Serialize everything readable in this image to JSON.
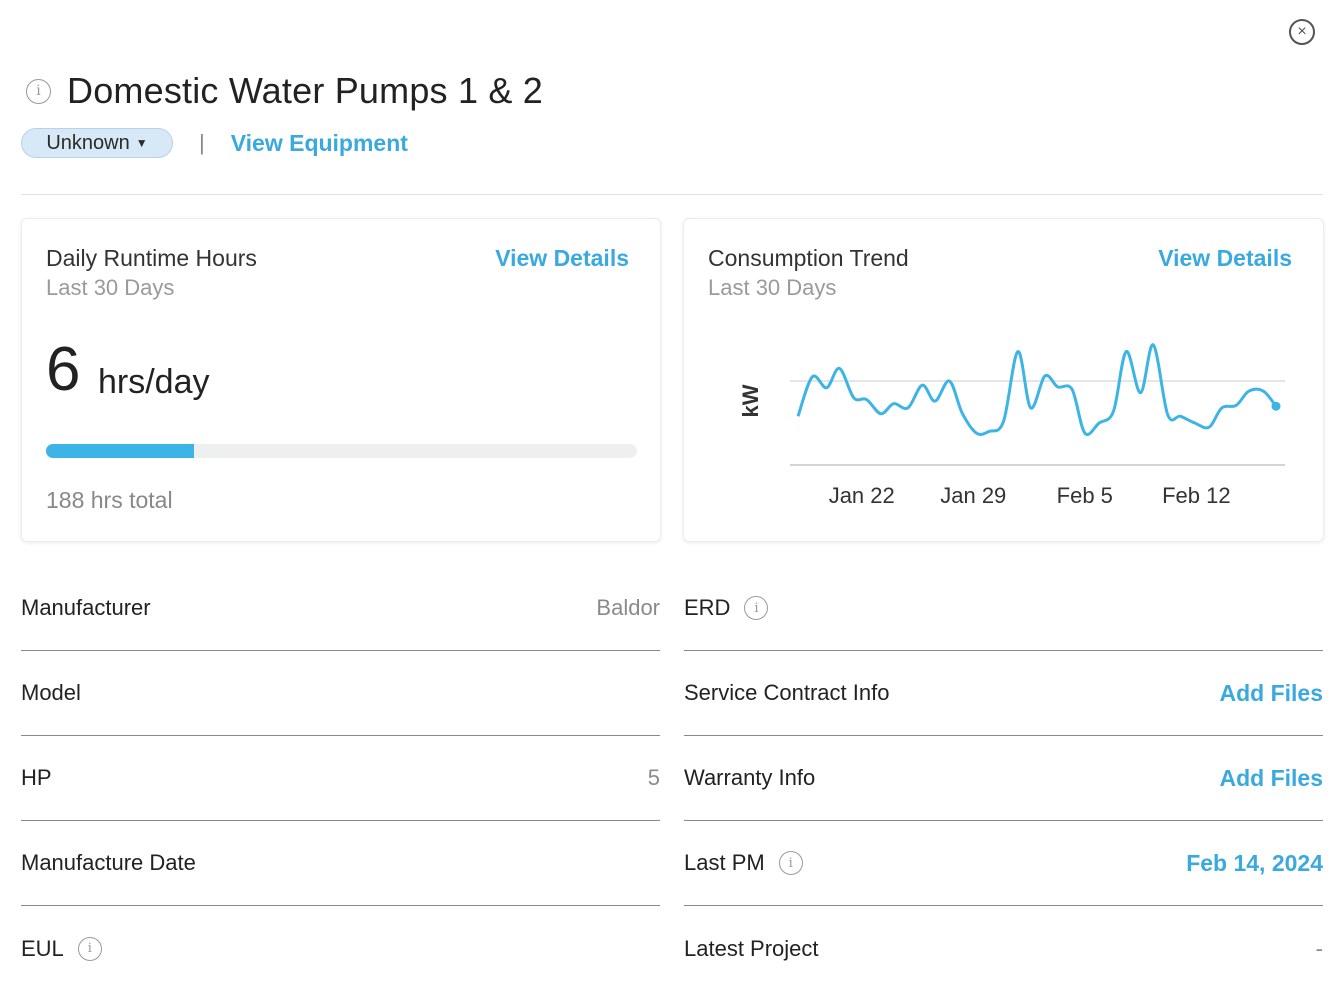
{
  "header": {
    "title": "Domestic Water Pumps 1 & 2",
    "status": "Unknown",
    "separator": "|",
    "view_equipment": "View Equipment",
    "close_glyph": "×",
    "info_glyph": "i"
  },
  "runtime_card": {
    "title": "Daily Runtime Hours",
    "subtitle": "Last 30 Days",
    "link": "View Details",
    "value": "6",
    "unit": "hrs/day",
    "progress_fraction": 0.25,
    "total": "188 hrs total"
  },
  "consumption_card": {
    "title": "Consumption Trend",
    "subtitle": "Last 30 Days",
    "link": "View Details"
  },
  "chart_data": {
    "type": "line",
    "title": "Consumption Trend",
    "ylabel": "kW",
    "xlabel": "",
    "x_ticks": [
      "Jan 22",
      "Jan 29",
      "Feb 5",
      "Feb 12"
    ],
    "x_tick_days": [
      22,
      29,
      36,
      43
    ],
    "xlim": [
      18,
      48
    ],
    "ylim": [
      0,
      100
    ],
    "gridline_y": 100,
    "grid": true,
    "series": [
      {
        "color": "#3cb4e6",
        "x": [
          18,
          18.9,
          19.8,
          20.6,
          21.5,
          22.3,
          23.2,
          24,
          24.9,
          25.8,
          26.6,
          27.5,
          28.3,
          29.2,
          30,
          30.9,
          31.8,
          32.6,
          33.5,
          34.3,
          35.2,
          36,
          36.9,
          37.8,
          38.6,
          39.5,
          40.3,
          41.2,
          42,
          42.9,
          43.8,
          44.6,
          45.5,
          46.3,
          47.2,
          48
        ],
        "y": [
          58,
          105,
          92,
          115,
          80,
          78,
          61,
          73,
          68,
          95,
          76,
          100,
          62,
          38,
          40,
          52,
          135,
          68,
          106,
          93,
          90,
          38,
          50,
          64,
          135,
          86,
          143,
          60,
          58,
          50,
          45,
          68,
          71,
          88,
          88,
          70
        ]
      }
    ]
  },
  "details": {
    "left": [
      {
        "label": "Manufacturer",
        "value": "Baldor",
        "info": false
      },
      {
        "label": "Model",
        "value": "",
        "info": false
      },
      {
        "label": "HP",
        "value": "5",
        "info": false
      },
      {
        "label": "Manufacture Date",
        "value": "",
        "info": false
      },
      {
        "label": "EUL",
        "value": "",
        "info": true
      }
    ],
    "right": [
      {
        "label": "ERD",
        "value": "",
        "info": true,
        "link": false
      },
      {
        "label": "Service Contract Info",
        "value": "Add Files",
        "info": false,
        "link": true
      },
      {
        "label": "Warranty Info",
        "value": "Add Files",
        "info": false,
        "link": true
      },
      {
        "label": "Last PM",
        "value": "Feb 14, 2024",
        "info": true,
        "link": true
      },
      {
        "label": "Latest Project",
        "value": "-",
        "info": false,
        "link": false
      }
    ]
  }
}
